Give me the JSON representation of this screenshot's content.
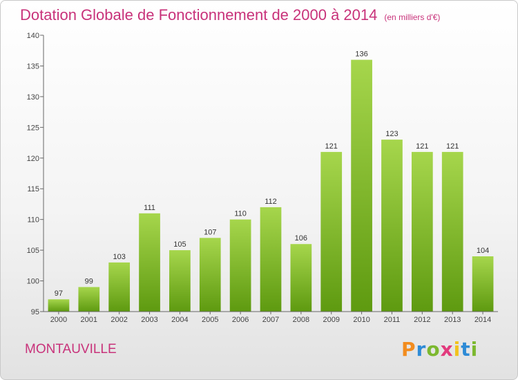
{
  "page": {
    "title": "Dotation Globale de Fonctionnement de 2000 à 2014",
    "unit": "(en milliers d'€)",
    "commune": "MONTAUVILLE",
    "logo": {
      "letters": [
        "P",
        "r",
        "o",
        "x",
        "i",
        "t",
        "i"
      ],
      "colors": [
        "#f28c1e",
        "#2e8bd6",
        "#7cb82f",
        "#e23a7d",
        "#f2c21e",
        "#2e8bd6",
        "#7cb82f"
      ]
    }
  },
  "colors": {
    "title": "#c8327a",
    "bar_top": "#a6d64c",
    "bar_bottom": "#5e9a10",
    "axis": "#666666"
  },
  "chart_data": {
    "type": "bar",
    "title": "Dotation Globale de Fonctionnement de 2000 à 2014",
    "subtitle": "(en milliers d'€)",
    "categories": [
      "2000",
      "2001",
      "2002",
      "2003",
      "2004",
      "2005",
      "2006",
      "2007",
      "2008",
      "2009",
      "2010",
      "2011",
      "2012",
      "2013",
      "2014"
    ],
    "values": [
      97,
      99,
      103,
      111,
      105,
      107,
      110,
      112,
      106,
      121,
      136,
      123,
      121,
      121,
      104
    ],
    "ylim": [
      95,
      140
    ],
    "yticks": [
      95,
      100,
      105,
      110,
      115,
      120,
      125,
      130,
      135,
      140
    ],
    "grid": false,
    "data_labels": true
  }
}
